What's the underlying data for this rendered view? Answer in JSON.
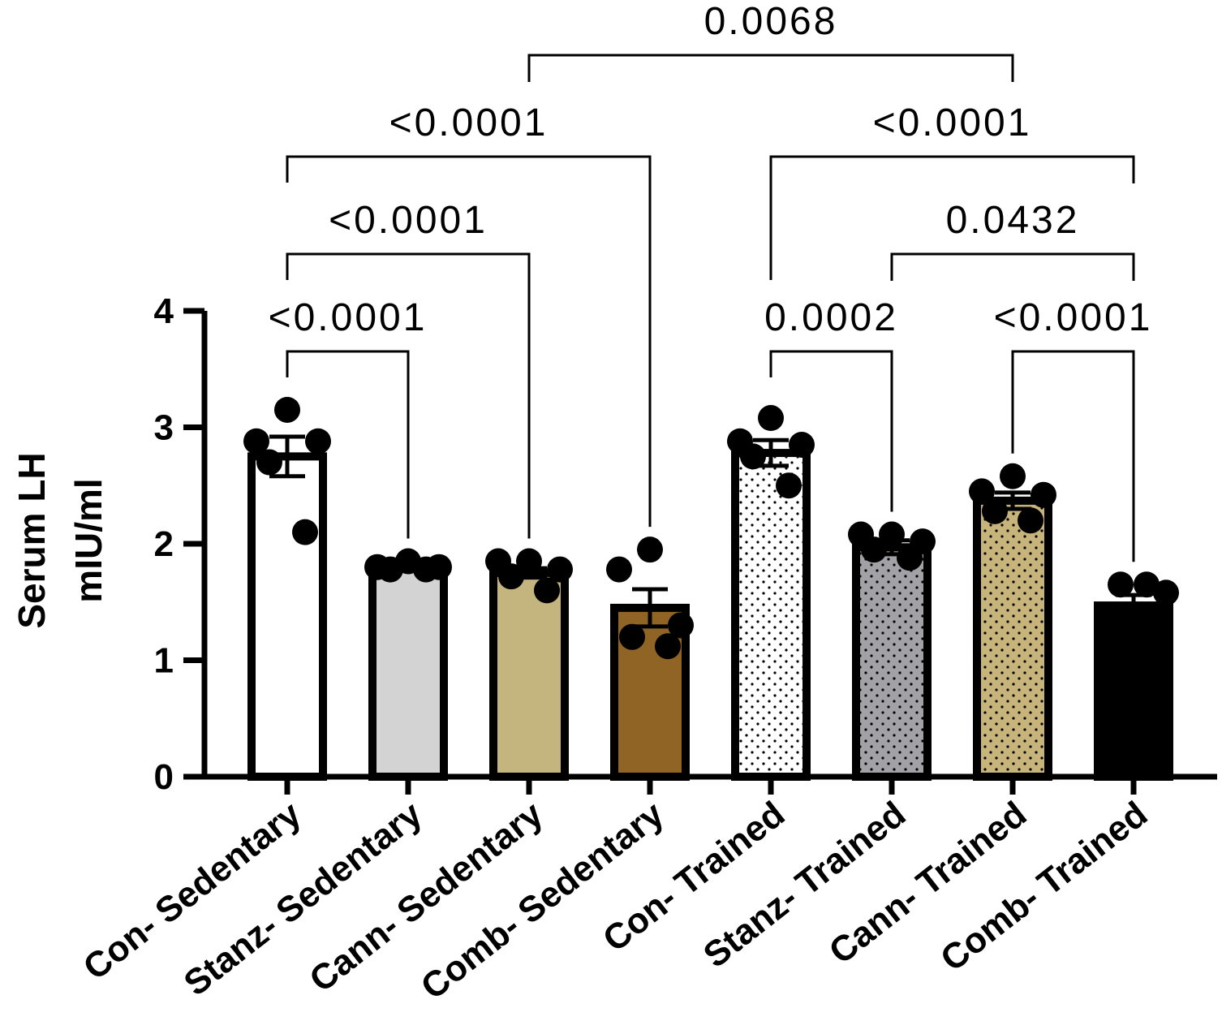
{
  "chart_data": {
    "type": "bar",
    "ylabel_line1": "Serum LH",
    "ylabel_line2": "mIU/ml",
    "ylim": [
      0,
      4
    ],
    "yticks": [
      "0",
      "1",
      "2",
      "3",
      "4"
    ],
    "categories": [
      "Con- Sedentary",
      "Stanz- Sedentary",
      "Cann- Sedentary",
      "Comb- Sedentary",
      "Con- Trained",
      "Stanz- Trained",
      "Cann- Trained",
      "Comb- Trained"
    ],
    "means": [
      2.75,
      1.8,
      1.75,
      1.45,
      2.78,
      1.97,
      2.37,
      1.47
    ],
    "sem": [
      0.17,
      0.03,
      0.04,
      0.16,
      0.11,
      0.06,
      0.07,
      0.09
    ],
    "points": [
      [
        3.15,
        2.88,
        2.88,
        2.7,
        2.1
      ],
      [
        1.85,
        1.8,
        1.8,
        1.78,
        1.78
      ],
      [
        1.85,
        1.85,
        1.78,
        1.72,
        1.6
      ],
      [
        1.95,
        1.78,
        1.3,
        1.2,
        1.12
      ],
      [
        3.08,
        2.88,
        2.85,
        2.75,
        2.5
      ],
      [
        2.08,
        2.08,
        2.02,
        1.95,
        1.88
      ],
      [
        2.58,
        2.45,
        2.42,
        2.28,
        2.2
      ],
      [
        1.65,
        1.65,
        1.58
      ]
    ],
    "fills": [
      "#ffffff",
      "#d3d3d3",
      "#c4b57e",
      "#8f6424",
      "#ffffff",
      "#a2a2a6",
      "#c6b47b",
      "#000000"
    ],
    "dotted": [
      false,
      false,
      false,
      false,
      true,
      true,
      true,
      false
    ],
    "comparisons": [
      {
        "from": 0,
        "to": 1,
        "label": "<0.0001"
      },
      {
        "from": 0,
        "to": 2,
        "label": "<0.0001"
      },
      {
        "from": 0,
        "to": 3,
        "label": "<0.0001"
      },
      {
        "from": 2,
        "to": 6,
        "label": "0.0068"
      },
      {
        "from": 4,
        "to": 5,
        "label": "0.0002"
      },
      {
        "from": 4,
        "to": 7,
        "label": "<0.0001"
      },
      {
        "from": 5,
        "to": 7,
        "label": "0.0432"
      },
      {
        "from": 6,
        "to": 7,
        "label": "<0.0001"
      }
    ]
  }
}
